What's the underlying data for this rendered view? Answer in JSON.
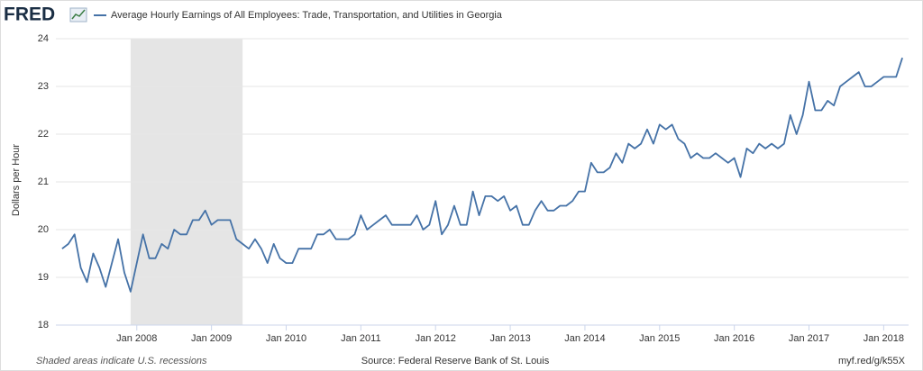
{
  "logo": "FRED",
  "chart_data": {
    "type": "line",
    "title": "Average Hourly Earnings of All Employees: Trade, Transportation, and Utilities in Georgia",
    "y_label": "Dollars per Hour",
    "x": [
      "2007-01",
      "2007-02",
      "2007-03",
      "2007-04",
      "2007-05",
      "2007-06",
      "2007-07",
      "2007-08",
      "2007-09",
      "2007-10",
      "2007-11",
      "2007-12",
      "2008-01",
      "2008-02",
      "2008-03",
      "2008-04",
      "2008-05",
      "2008-06",
      "2008-07",
      "2008-08",
      "2008-09",
      "2008-10",
      "2008-11",
      "2008-12",
      "2009-01",
      "2009-02",
      "2009-03",
      "2009-04",
      "2009-05",
      "2009-06",
      "2009-07",
      "2009-08",
      "2009-09",
      "2009-10",
      "2009-11",
      "2009-12",
      "2010-01",
      "2010-02",
      "2010-03",
      "2010-04",
      "2010-05",
      "2010-06",
      "2010-07",
      "2010-08",
      "2010-09",
      "2010-10",
      "2010-11",
      "2010-12",
      "2011-01",
      "2011-02",
      "2011-03",
      "2011-04",
      "2011-05",
      "2011-06",
      "2011-07",
      "2011-08",
      "2011-09",
      "2011-10",
      "2011-11",
      "2011-12",
      "2012-01",
      "2012-02",
      "2012-03",
      "2012-04",
      "2012-05",
      "2012-06",
      "2012-07",
      "2012-08",
      "2012-09",
      "2012-10",
      "2012-11",
      "2012-12",
      "2013-01",
      "2013-02",
      "2013-03",
      "2013-04",
      "2013-05",
      "2013-06",
      "2013-07",
      "2013-08",
      "2013-09",
      "2013-10",
      "2013-11",
      "2013-12",
      "2014-01",
      "2014-02",
      "2014-03",
      "2014-04",
      "2014-05",
      "2014-06",
      "2014-07",
      "2014-08",
      "2014-09",
      "2014-10",
      "2014-11",
      "2014-12",
      "2015-01",
      "2015-02",
      "2015-03",
      "2015-04",
      "2015-05",
      "2015-06",
      "2015-07",
      "2015-08",
      "2015-09",
      "2015-10",
      "2015-11",
      "2015-12",
      "2016-01",
      "2016-02",
      "2016-03",
      "2016-04",
      "2016-05",
      "2016-06",
      "2016-07",
      "2016-08",
      "2016-09",
      "2016-10",
      "2016-11",
      "2016-12",
      "2017-01",
      "2017-02",
      "2017-03",
      "2017-04",
      "2017-05",
      "2017-06",
      "2017-07",
      "2017-08",
      "2017-09",
      "2017-10",
      "2017-11",
      "2017-12",
      "2018-01",
      "2018-02",
      "2018-03",
      "2018-04"
    ],
    "series": [
      {
        "name": "Average Hourly Earnings of All Employees: Trade, Transportation, and Utilities in Georgia",
        "color": "#4572a7",
        "values": [
          19.6,
          19.7,
          19.9,
          19.2,
          18.9,
          19.5,
          19.2,
          18.8,
          19.3,
          19.8,
          19.1,
          18.7,
          19.3,
          19.9,
          19.4,
          19.4,
          19.7,
          19.6,
          20.0,
          19.9,
          19.9,
          20.2,
          20.2,
          20.4,
          20.1,
          20.2,
          20.2,
          20.2,
          19.8,
          19.7,
          19.6,
          19.8,
          19.6,
          19.3,
          19.7,
          19.4,
          19.3,
          19.3,
          19.6,
          19.6,
          19.6,
          19.9,
          19.9,
          20.0,
          19.8,
          19.8,
          19.8,
          19.9,
          20.3,
          20.0,
          20.1,
          20.2,
          20.3,
          20.1,
          20.1,
          20.1,
          20.1,
          20.3,
          20.0,
          20.1,
          20.6,
          19.9,
          20.1,
          20.5,
          20.1,
          20.1,
          20.8,
          20.3,
          20.7,
          20.7,
          20.6,
          20.7,
          20.4,
          20.5,
          20.1,
          20.1,
          20.4,
          20.6,
          20.4,
          20.4,
          20.5,
          20.5,
          20.6,
          20.8,
          20.8,
          21.4,
          21.2,
          21.2,
          21.3,
          21.6,
          21.4,
          21.8,
          21.7,
          21.8,
          22.1,
          21.8,
          22.2,
          22.1,
          22.2,
          21.9,
          21.8,
          21.5,
          21.6,
          21.5,
          21.5,
          21.6,
          21.5,
          21.4,
          21.5,
          21.1,
          21.7,
          21.6,
          21.8,
          21.7,
          21.8,
          21.7,
          21.8,
          22.4,
          22.0,
          22.4,
          23.1,
          22.5,
          22.5,
          22.7,
          22.6,
          23.0,
          23.1,
          23.2,
          23.3,
          23.0,
          23.0,
          23.1,
          23.2,
          23.2,
          23.2,
          23.6
        ]
      }
    ],
    "xlim": [
      "2006-12",
      "2018-05"
    ],
    "xticks": [
      {
        "value": "2008-01",
        "label": "Jan 2008"
      },
      {
        "value": "2009-01",
        "label": "Jan 2009"
      },
      {
        "value": "2010-01",
        "label": "Jan 2010"
      },
      {
        "value": "2011-01",
        "label": "Jan 2011"
      },
      {
        "value": "2012-01",
        "label": "Jan 2012"
      },
      {
        "value": "2013-01",
        "label": "Jan 2013"
      },
      {
        "value": "2014-01",
        "label": "Jan 2014"
      },
      {
        "value": "2015-01",
        "label": "Jan 2015"
      },
      {
        "value": "2016-01",
        "label": "Jan 2016"
      },
      {
        "value": "2017-01",
        "label": "Jan 2017"
      },
      {
        "value": "2018-01",
        "label": "Jan 2018"
      }
    ],
    "ylim": [
      18,
      24
    ],
    "yticks": [
      18,
      19,
      20,
      21,
      22,
      23,
      24
    ],
    "grid": true,
    "recessions": [
      {
        "start": "2007-12",
        "end": "2009-06"
      }
    ],
    "note": "Shaded areas indicate U.S. recessions",
    "source": "Source: Federal Reserve Bank of St. Louis",
    "url": "myf.red/g/k55X"
  }
}
